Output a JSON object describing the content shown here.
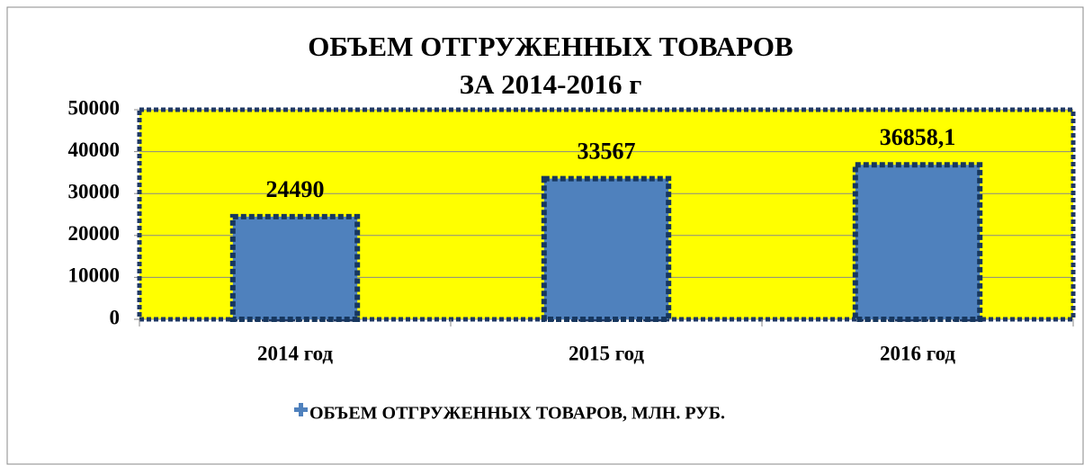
{
  "chart_data": {
    "type": "bar",
    "title": [
      "ОБЪЕМ ОТГРУЖЕННЫХ ТОВАРОВ",
      "ЗА 2014-2016 г"
    ],
    "categories": [
      "2014 год",
      "2015 год",
      "2016 год"
    ],
    "series": [
      {
        "name": "ОБЪЕМ ОТГРУЖЕННЫХ ТОВАРОВ, МЛН. РУБ.",
        "color": "#4f81bd",
        "values": [
          24490,
          33567,
          36858.1
        ],
        "value_labels": [
          "24490",
          "33567",
          "36858,1"
        ]
      }
    ],
    "ylim": [
      0,
      50000
    ],
    "yticks": [
      0,
      10000,
      20000,
      30000,
      40000,
      50000
    ],
    "grid": true,
    "plot_background": "#ffff00",
    "legend": "bottom"
  }
}
